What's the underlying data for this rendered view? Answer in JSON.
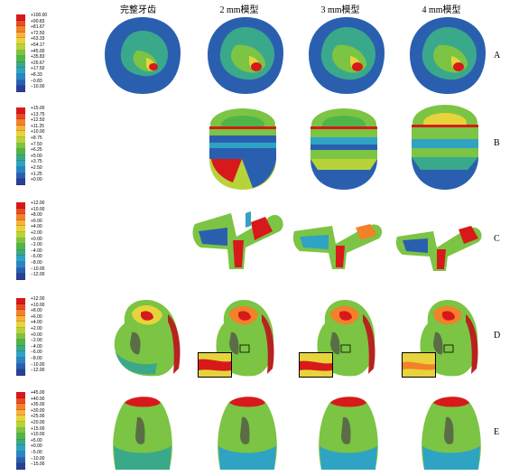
{
  "column_headers": [
    "完整牙齿",
    "2 mm模型",
    "3 mm模型",
    "4 mm模型"
  ],
  "row_labels": [
    "A",
    "B",
    "C",
    "D",
    "E"
  ],
  "legends": [
    {
      "row": "A",
      "values": [
        "+100.00",
        "+90.83",
        "+81.67",
        "+72.50",
        "+63.33",
        "+54.17",
        "+45.00",
        "+35.83",
        "+26.67",
        "+17.50",
        "+8.33",
        "−0.83",
        "−10.00"
      ]
    },
    {
      "row": "B",
      "values": [
        "+15.00",
        "+13.75",
        "+12.50",
        "+11.25",
        "+10.00",
        "+8.75",
        "+7.50",
        "+6.25",
        "+5.00",
        "+3.75",
        "+2.50",
        "+1.25",
        "+0.00"
      ]
    },
    {
      "row": "C",
      "values": [
        "+12.00",
        "+10.00",
        "+8.00",
        "+6.00",
        "+4.00",
        "+2.00",
        "+0.00",
        "−2.00",
        "−4.00",
        "−6.00",
        "−8.00",
        "−10.00",
        "−12.00"
      ]
    },
    {
      "row": "D",
      "values": [
        "+12.00",
        "+10.00",
        "+8.00",
        "+6.00",
        "+4.00",
        "+2.00",
        "+0.00",
        "−2.00",
        "−4.00",
        "−6.00",
        "−8.00",
        "−10.00",
        "−12.00"
      ]
    },
    {
      "row": "E",
      "values": [
        "+45.00",
        "+40.00",
        "+35.00",
        "+30.00",
        "+25.00",
        "+20.00",
        "+15.00",
        "+10.00",
        "+5.00",
        "+0.00",
        "−5.00",
        "−10.00",
        "−15.00"
      ]
    }
  ],
  "colors": {
    "scale": [
      "#d7191c",
      "#ea4a22",
      "#f2812a",
      "#f8b13a",
      "#e6d43a",
      "#b6d43a",
      "#7cc443",
      "#4fb54a",
      "#3aa88a",
      "#2fa3c4",
      "#2b84c6",
      "#2a5fb0",
      "#2a3f95"
    ]
  }
}
